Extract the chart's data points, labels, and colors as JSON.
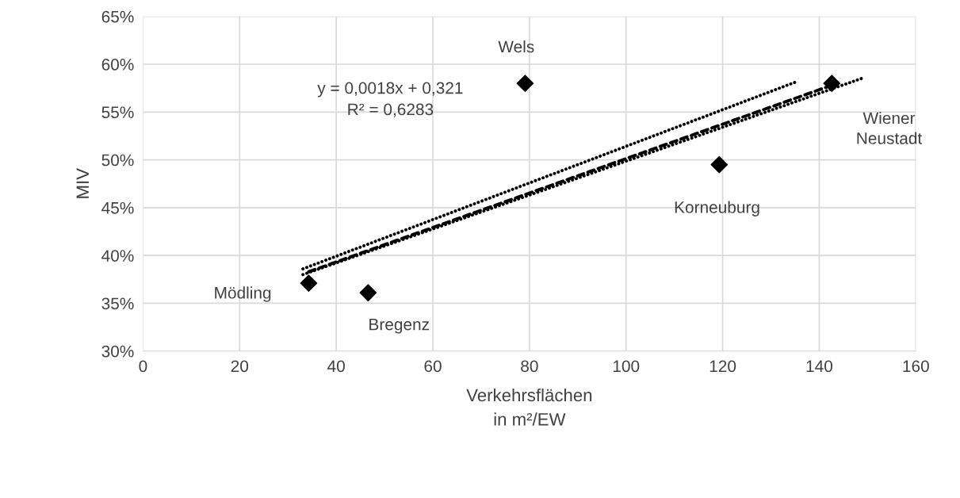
{
  "chart_data": {
    "type": "scatter",
    "xlabel": "Verkehrsflächen\nin m²/EW",
    "ylabel": "MIV",
    "series": [
      {
        "color": "#000000",
        "marker": "diamond",
        "x": [
          34.3,
          46.6,
          79.1,
          119.3,
          142.6
        ],
        "values": [
          0.371,
          0.361,
          0.58,
          0.495,
          0.58
        ]
      },
      {
        "type": "line",
        "color": "#000000",
        "line_style": "dashed",
        "marker": "none",
        "x": [
          34.3,
          142.6
        ],
        "values": [
          0.383,
          0.578
        ]
      },
      {
        "type": "line",
        "color": "#000000",
        "line_style": "dotted",
        "marker": "none",
        "x": [
          33.1,
          134.9
        ],
        "values": [
          0.386,
          0.581
        ]
      },
      {
        "type": "line",
        "color": "#000000",
        "line_style": "dotted",
        "marker": "none",
        "x": [
          33.1,
          148.7
        ],
        "values": [
          0.38,
          0.585
        ]
      }
    ],
    "annotations": [
      {
        "text": "Mödling",
        "x": 34.3,
        "y": 0.371
      },
      {
        "text": "Bregenz",
        "x": 46.6,
        "y": 0.361
      },
      {
        "text": "Wels",
        "x": 79.1,
        "y": 0.58
      },
      {
        "text": "Korneuburg",
        "x": 119.3,
        "y": 0.495
      },
      {
        "text": "Wiener\nNeustadt",
        "x": 142.6,
        "y": 0.58
      },
      "y = 0,0018x + 0,321\nR² = 0,6283"
    ],
    "xlim": [
      0,
      160
    ],
    "xticks": [
      0,
      20,
      40,
      60,
      80,
      100,
      120,
      140,
      160
    ],
    "ylim": [
      0.3,
      0.65
    ],
    "yticks": [
      {
        "value": 0.3,
        "label": "30%"
      },
      {
        "value": 0.35,
        "label": "35%"
      },
      {
        "value": 0.4,
        "label": "40%"
      },
      {
        "value": 0.45,
        "label": "45%"
      },
      {
        "value": 0.5,
        "label": "50%"
      },
      {
        "value": 0.55,
        "label": "55%"
      },
      {
        "value": 0.6,
        "label": "60%"
      },
      {
        "value": 0.65,
        "label": "65%"
      }
    ],
    "grid": true,
    "legend": false
  }
}
